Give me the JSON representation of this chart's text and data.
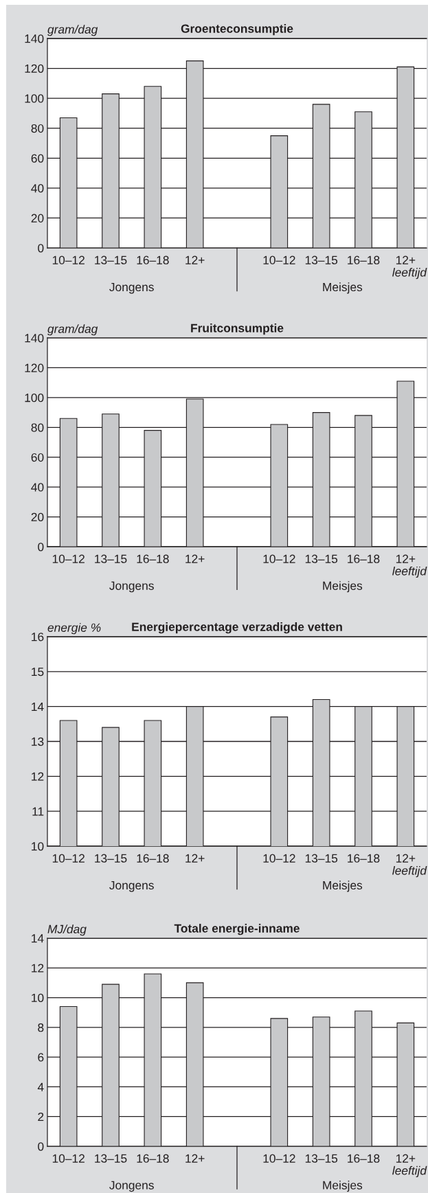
{
  "chart_data": [
    {
      "type": "bar",
      "title": "Groenteconsumptie",
      "ylabel": "gram/dag",
      "categories": [
        "10–12",
        "13–15",
        "16–18",
        "12+",
        null,
        "10–12",
        "13–15",
        "16–18",
        "12+"
      ],
      "values": [
        87,
        103,
        108,
        125,
        null,
        75,
        96,
        91,
        121
      ],
      "color": "#c8c9cb",
      "ylim": [
        0,
        140
      ],
      "yticks": [
        0,
        20,
        40,
        60,
        80,
        100,
        120,
        140
      ],
      "grid": "y",
      "annotations": [
        "Jongens",
        "Meisjes",
        "leeftijd"
      ]
    },
    {
      "type": "bar",
      "title": "Fruitconsumptie",
      "ylabel": "gram/dag",
      "categories": [
        "10–12",
        "13–15",
        "16–18",
        "12+",
        null,
        "10–12",
        "13–15",
        "16–18",
        "12+"
      ],
      "values": [
        86,
        89,
        78,
        99,
        null,
        82,
        90,
        88,
        111
      ],
      "color": "#c8c9cb",
      "ylim": [
        0,
        140
      ],
      "yticks": [
        0,
        20,
        40,
        60,
        80,
        100,
        120,
        140
      ],
      "grid": "y",
      "annotations": [
        "Jongens",
        "Meisjes",
        "leeftijd"
      ]
    },
    {
      "type": "bar",
      "title": "Energiepercentage verzadigde vetten",
      "ylabel": "energie %",
      "categories": [
        "10–12",
        "13–15",
        "16–18",
        "12+",
        null,
        "10–12",
        "13–15",
        "16–18",
        "12+"
      ],
      "values": [
        13.6,
        13.4,
        13.6,
        14.0,
        null,
        13.7,
        14.2,
        14.0,
        14.0
      ],
      "color": "#c8c9cb",
      "ylim": [
        10,
        16
      ],
      "yticks": [
        10,
        11,
        12,
        13,
        14,
        15,
        16
      ],
      "grid": "y",
      "annotations": [
        "Jongens",
        "Meisjes",
        "leeftijd"
      ]
    },
    {
      "type": "bar",
      "title": "Totale energie-inname",
      "ylabel": "MJ/dag",
      "categories": [
        "10–12",
        "13–15",
        "16–18",
        "12+",
        null,
        "10–12",
        "13–15",
        "16–18",
        "12+"
      ],
      "values": [
        9.4,
        10.9,
        11.6,
        11.0,
        null,
        8.6,
        8.7,
        9.1,
        8.3
      ],
      "color": "#c8c9cb",
      "ylim": [
        0,
        14
      ],
      "yticks": [
        0,
        2,
        4,
        6,
        8,
        10,
        12,
        14
      ],
      "grid": "y",
      "annotations": [
        "Jongens",
        "Meisjes",
        "leeftijd"
      ]
    }
  ]
}
